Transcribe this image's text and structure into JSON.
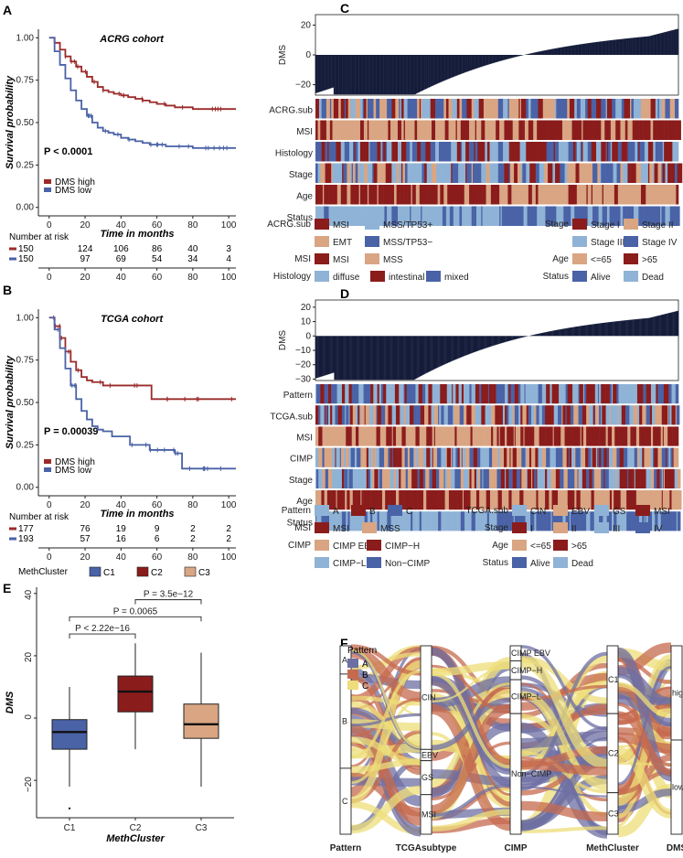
{
  "panels": {
    "A": "A",
    "B": "B",
    "C": "C",
    "D": "D",
    "E": "E",
    "F": "F"
  },
  "colors": {
    "dms_high": "#9b2a2a",
    "dms_low": "#4a62a6",
    "bar": "#141c3a",
    "msi": "#8b1c1c",
    "mss_tp53pos": "#8fb3d6",
    "emt": "#d9a583",
    "mss_tp53neg": "#4a62a6",
    "mss": "#d9a583",
    "diffuse": "#8fb3d6",
    "intestinal": "#8b1c1c",
    "mixed": "#4a62a6",
    "stage1": "#8b1c1c",
    "stage2": "#d9a583",
    "stage3": "#8fb3d6",
    "stage4": "#4a62a6",
    "age_le65": "#d9a583",
    "age_gt65": "#8b1c1c",
    "alive": "#4a62a6",
    "dead": "#8fb3d6",
    "patA": "#8fb3d6",
    "patB": "#8b1c1c",
    "patC": "#4a62a6",
    "cin": "#8fb3d6",
    "ebv": "#d9a583",
    "gs": "#8fb3d6",
    "cimp_ebv": "#d9a583",
    "cimp_h": "#8b1c1c",
    "cimp_l": "#8fb3d6",
    "noncimp": "#4a62a6",
    "c1": "#4a62a6",
    "c2": "#8b1c1c",
    "c3": "#d9a583",
    "sankA": "#6e6fa3",
    "sankB": "#c66a4e",
    "sankC": "#eedd7a"
  },
  "chart_data": [
    {
      "id": "A",
      "type": "line",
      "title": "ACRG cohort",
      "xlabel": "Time in months",
      "ylabel": "Survival probability",
      "xlim": [
        -6,
        104
      ],
      "ylim": [
        -0.05,
        1.05
      ],
      "xticks": [
        "0",
        "20",
        "40",
        "60",
        "80",
        "100"
      ],
      "yticks": [
        "0.00",
        "0.25",
        "0.50",
        "0.75",
        "1.00"
      ],
      "pvalue": "P < 0.0001",
      "series": [
        {
          "name": "DMS high",
          "x": [
            0,
            3,
            6,
            9,
            12,
            15,
            18,
            21,
            24,
            27,
            30,
            33,
            36,
            40,
            44,
            48,
            52,
            56,
            60,
            65,
            70,
            75,
            80,
            85,
            90,
            95,
            104
          ],
          "y": [
            1.0,
            0.97,
            0.93,
            0.89,
            0.86,
            0.83,
            0.8,
            0.77,
            0.74,
            0.71,
            0.69,
            0.68,
            0.67,
            0.66,
            0.65,
            0.64,
            0.63,
            0.62,
            0.61,
            0.6,
            0.59,
            0.59,
            0.58,
            0.58,
            0.58,
            0.58,
            0.58
          ]
        },
        {
          "name": "DMS low",
          "x": [
            0,
            3,
            6,
            9,
            12,
            15,
            18,
            21,
            24,
            27,
            30,
            33,
            36,
            40,
            44,
            48,
            52,
            56,
            60,
            65,
            70,
            75,
            80,
            85,
            90,
            95,
            104
          ],
          "y": [
            1.0,
            0.92,
            0.84,
            0.76,
            0.69,
            0.63,
            0.58,
            0.54,
            0.5,
            0.47,
            0.45,
            0.44,
            0.43,
            0.41,
            0.4,
            0.39,
            0.38,
            0.37,
            0.37,
            0.36,
            0.36,
            0.36,
            0.35,
            0.35,
            0.35,
            0.35,
            0.35
          ]
        }
      ],
      "risk": {
        "header": "Number at risk",
        "rows": [
          [
            "150",
            "124",
            "106",
            "86",
            "40",
            "3"
          ],
          [
            "150",
            "97",
            "69",
            "54",
            "34",
            "4"
          ]
        ]
      }
    },
    {
      "id": "B",
      "type": "line",
      "title": "TCGA cohort",
      "xlabel": "Time in months",
      "ylabel": "Survival probability",
      "xlim": [
        -6,
        104
      ],
      "ylim": [
        -0.05,
        1.05
      ],
      "xticks": [
        "0",
        "20",
        "40",
        "60",
        "80",
        "100"
      ],
      "yticks": [
        "0.00",
        "0.25",
        "0.50",
        "0.75",
        "1.00"
      ],
      "pvalue": "P = 0.00039",
      "series": [
        {
          "name": "DMS high",
          "x": [
            0,
            3,
            6,
            9,
            12,
            15,
            18,
            21,
            24,
            27,
            30,
            35,
            40,
            45,
            50,
            56,
            57,
            60,
            70,
            80,
            90,
            104
          ],
          "y": [
            1.0,
            0.95,
            0.88,
            0.8,
            0.74,
            0.69,
            0.65,
            0.63,
            0.62,
            0.62,
            0.6,
            0.6,
            0.6,
            0.6,
            0.6,
            0.6,
            0.52,
            0.52,
            0.52,
            0.52,
            0.52,
            0.52
          ]
        },
        {
          "name": "DMS low",
          "x": [
            0,
            3,
            6,
            9,
            12,
            15,
            18,
            21,
            24,
            27,
            30,
            35,
            40,
            45,
            50,
            56,
            60,
            65,
            70,
            72,
            74,
            80,
            90,
            104
          ],
          "y": [
            1.0,
            0.93,
            0.82,
            0.7,
            0.6,
            0.52,
            0.45,
            0.4,
            0.36,
            0.34,
            0.33,
            0.3,
            0.3,
            0.25,
            0.25,
            0.22,
            0.22,
            0.22,
            0.2,
            0.2,
            0.11,
            0.11,
            0.11,
            0.11
          ]
        }
      ],
      "risk": {
        "header": "Number at risk",
        "rows": [
          [
            "177",
            "76",
            "19",
            "9",
            "2",
            "2"
          ],
          [
            "193",
            "57",
            "16",
            "6",
            "2",
            "2"
          ]
        ]
      }
    },
    {
      "id": "C",
      "type": "heatmap",
      "ylabel": "DMS",
      "ylim": [
        -27,
        27
      ],
      "yticks": [
        "20",
        "0",
        "−20"
      ],
      "n": 300,
      "rows": [
        "ACRG.sub",
        "MSI",
        "Histology",
        "Stage",
        "Age",
        "Status"
      ],
      "legend": [
        {
          "group": "ACRG.sub",
          "items": [
            [
              "MSI",
              "msi"
            ],
            [
              "MSS/TP53+",
              "mss_tp53pos"
            ]
          ]
        },
        {
          "group": "",
          "items": [
            [
              "EMT",
              "emt"
            ],
            [
              "MSS/TP53−",
              "mss_tp53neg"
            ]
          ]
        },
        {
          "group": "MSI",
          "items": [
            [
              "MSI",
              "msi"
            ],
            [
              "MSS",
              "mss"
            ]
          ]
        },
        {
          "group": "Histology",
          "items": [
            [
              "diffuse",
              "diffuse"
            ],
            [
              "intestinal",
              "intestinal"
            ],
            [
              "mixed",
              "mixed"
            ]
          ]
        },
        {
          "group": "Stage",
          "items": [
            [
              "Stage I",
              "stage1"
            ],
            [
              "Stage II",
              "stage2"
            ]
          ]
        },
        {
          "group": "",
          "items": [
            [
              "Stage III",
              "stage3"
            ],
            [
              "Stage IV",
              "stage4"
            ]
          ]
        },
        {
          "group": "Age",
          "items": [
            [
              "<=65",
              "age_le65"
            ],
            [
              ">65",
              "age_gt65"
            ]
          ]
        },
        {
          "group": "Status",
          "items": [
            [
              "Alive",
              "alive"
            ],
            [
              "Dead",
              "dead"
            ]
          ]
        }
      ]
    },
    {
      "id": "D",
      "type": "heatmap",
      "ylabel": "DMS",
      "ylim": [
        -31,
        25
      ],
      "yticks": [
        "20",
        "10",
        "0",
        "−10",
        "−20",
        "−30"
      ],
      "n": 370,
      "rows": [
        "Pattern",
        "TCGA.sub",
        "MSI",
        "CIMP",
        "Stage",
        "Age",
        "Status"
      ],
      "legend": [
        {
          "group": "Pattern",
          "items": [
            [
              "A",
              "patA"
            ],
            [
              "B",
              "patB"
            ],
            [
              "C",
              "patC"
            ]
          ]
        },
        {
          "group": "MSI",
          "items": [
            [
              "MSI",
              "msi"
            ],
            [
              "MSS",
              "mss"
            ]
          ]
        },
        {
          "group": "CIMP",
          "items": [
            [
              "CIMP EBV",
              "cimp_ebv"
            ],
            [
              "CIMP−H",
              "cimp_h"
            ]
          ]
        },
        {
          "group": "",
          "items": [
            [
              "CIMP−L",
              "cimp_l"
            ],
            [
              "Non−CIMP",
              "noncimp"
            ]
          ]
        },
        {
          "group": "TCGA.sub",
          "items": [
            [
              "CIN",
              "cin"
            ],
            [
              "EBV",
              "ebv"
            ],
            [
              "GS",
              "gs"
            ],
            [
              "MSI",
              "msi"
            ]
          ]
        },
        {
          "group": "Stage",
          "items": [
            [
              "I",
              "stage1"
            ],
            [
              "II",
              "stage2"
            ],
            [
              "III",
              "stage3"
            ],
            [
              "IV",
              "stage4"
            ]
          ]
        },
        {
          "group": "Age",
          "items": [
            [
              "<=65",
              "age_le65"
            ],
            [
              ">65",
              "age_gt65"
            ]
          ]
        },
        {
          "group": "Status",
          "items": [
            [
              "Alive",
              "alive"
            ],
            [
              "Dead",
              "dead"
            ]
          ]
        }
      ]
    },
    {
      "id": "E",
      "type": "bar",
      "title": "MethCluster",
      "xlabel": "MethCluster",
      "ylabel": "DMS",
      "categories": [
        "C1",
        "C2",
        "C3"
      ],
      "ylim": [
        -32,
        42
      ],
      "yticks": [
        "40",
        "20",
        "0",
        "−20"
      ],
      "boxes": [
        {
          "name": "C1",
          "q1": -10,
          "median": -4.5,
          "q3": -0.5,
          "low": -22,
          "high": 10,
          "outliers": [
            -29
          ]
        },
        {
          "name": "C2",
          "q1": 2,
          "median": 8.5,
          "q3": 13.5,
          "low": -10,
          "high": 24,
          "outliers": []
        },
        {
          "name": "C3",
          "q1": -6.5,
          "median": -2,
          "q3": 4.5,
          "low": -22,
          "high": 21,
          "outliers": []
        }
      ],
      "comparisons": [
        {
          "label": "P < 2.22e−16",
          "from": "C1",
          "to": "C2",
          "y": 27
        },
        {
          "label": "P = 0.0065",
          "from": "C1",
          "to": "C3",
          "y": 32.5
        },
        {
          "label": "P = 3.5e−12",
          "from": "C2",
          "to": "C3",
          "y": 38
        }
      ]
    },
    {
      "id": "F",
      "type": "sankey",
      "legend_title": "Pattern",
      "legend": [
        [
          "A",
          "sankA"
        ],
        [
          "B",
          "sankB"
        ],
        [
          "C",
          "sankC"
        ]
      ],
      "axes": [
        "Pattern",
        "TCGAsubtype",
        "CIMP",
        "MethCluster",
        "DMS"
      ],
      "nodes": [
        [
          [
            "A",
            0.15
          ],
          [
            "B",
            0.5
          ],
          [
            "C",
            0.35
          ]
        ],
        [
          [
            "CIN",
            0.55
          ],
          [
            "EBV",
            0.06
          ],
          [
            "GS",
            0.18
          ],
          [
            "MSI",
            0.21
          ]
        ],
        [
          [
            "CIMP EBV",
            0.08
          ],
          [
            "CIMP−H",
            0.1
          ],
          [
            "CIMP−L",
            0.18
          ],
          [
            "Non−CIMP",
            0.64
          ]
        ],
        [
          [
            "C1",
            0.36
          ],
          [
            "C2",
            0.42
          ],
          [
            "C3",
            0.22
          ]
        ],
        [
          [
            "high",
            0.5
          ],
          [
            "low",
            0.5
          ]
        ]
      ]
    }
  ]
}
